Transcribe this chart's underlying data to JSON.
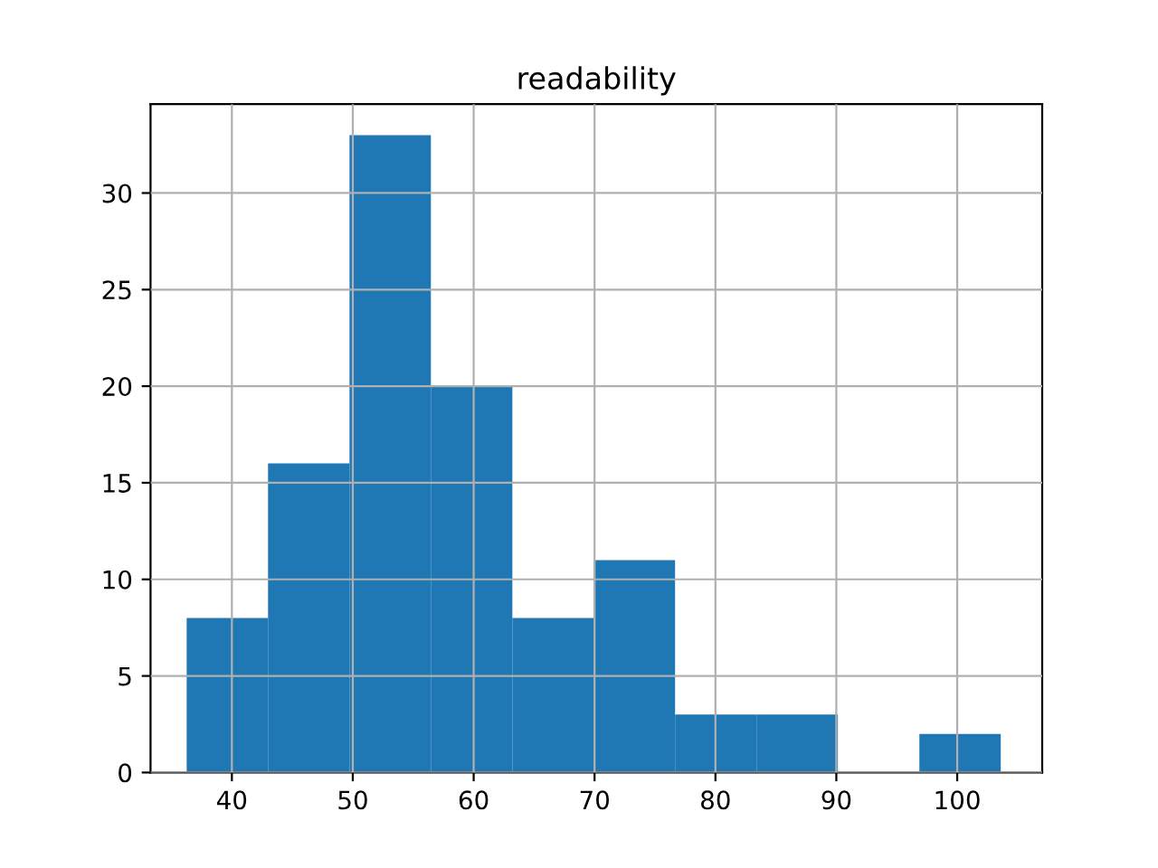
{
  "chart_data": {
    "type": "histogram",
    "title": "readability",
    "bins": [
      36.26,
      42.99,
      49.73,
      56.46,
      63.2,
      69.93,
      76.66,
      83.4,
      90.13,
      96.87,
      103.6
    ],
    "values": [
      8,
      16,
      33,
      20,
      8,
      11,
      3,
      3,
      0,
      2
    ],
    "color": "#1f77b4",
    "xlim": [
      33.27,
      107.03
    ],
    "xticks": [
      40,
      50,
      60,
      70,
      80,
      90,
      100
    ],
    "ylim": [
      0,
      34.6
    ],
    "yticks": [
      0,
      5,
      10,
      15,
      20,
      25,
      30
    ],
    "grid": true
  }
}
